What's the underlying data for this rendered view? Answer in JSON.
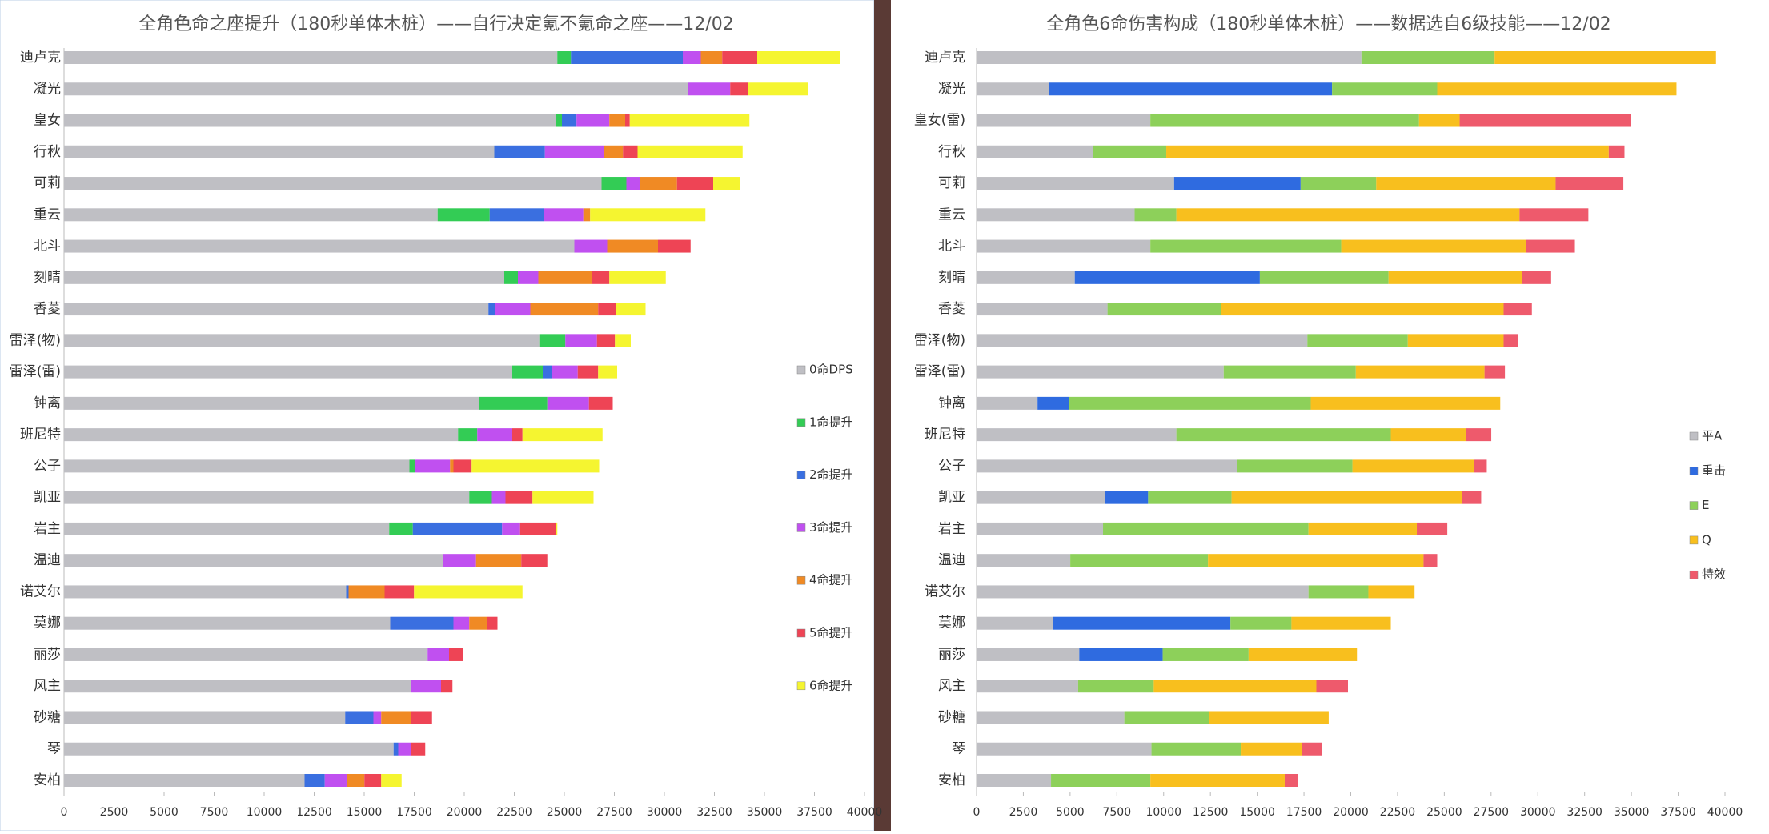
{
  "chart_data": [
    {
      "type": "bar",
      "horizontal": true,
      "legend": "right",
      "title": "全角色命之座提升（180秒单体木桩）——自行决定氪不氪命之座——12/02",
      "categories": [
        "迪卢克",
        "凝光",
        "皇女",
        "行秋",
        "可莉",
        "重云",
        "北斗",
        "刻晴",
        "香菱",
        "雷泽(物)",
        "雷泽(雷)",
        "钟离",
        "班尼特",
        "公子",
        "凯亚",
        "岩主",
        "温迪",
        "诺艾尔",
        "莫娜",
        "丽莎",
        "风主",
        "砂糖",
        "琴",
        "安柏"
      ],
      "series": [
        {
          "name": "0命DPS",
          "color": "#bfbfc4",
          "values": [
            24650,
            31200,
            24600,
            21500,
            26860,
            18670,
            25500,
            22000,
            21210,
            23750,
            22400,
            20760,
            19690,
            17260,
            20250,
            16250,
            18960,
            14100,
            16300,
            18170,
            17320,
            14050,
            16470,
            12020
          ]
        },
        {
          "name": "1命提升",
          "color": "#33cc55",
          "values": [
            680,
            0,
            280,
            0,
            1240,
            2600,
            0,
            680,
            0,
            1300,
            1520,
            3390,
            960,
            290,
            1130,
            1180,
            0,
            0,
            0,
            0,
            0,
            0,
            0,
            0
          ]
        },
        {
          "name": "2命提升",
          "color": "#3a6fe0",
          "values": [
            5590,
            0,
            730,
            2530,
            0,
            2710,
            0,
            0,
            340,
            0,
            450,
            0,
            0,
            0,
            0,
            4460,
            0,
            120,
            3160,
            0,
            0,
            1410,
            230,
            1010
          ]
        },
        {
          "name": "3命提升",
          "color": "#c050f0",
          "values": [
            900,
            2090,
            1640,
            2940,
            670,
            1970,
            1640,
            1020,
            1750,
            1580,
            1300,
            2080,
            1750,
            1740,
            680,
            900,
            1630,
            0,
            790,
            1070,
            1520,
            390,
            620,
            1130
          ]
        },
        {
          "name": "4命提升",
          "color": "#f08a24",
          "values": [
            1070,
            0,
            790,
            960,
            1860,
            340,
            2540,
            2700,
            3390,
            0,
            0,
            0,
            0,
            170,
            0,
            0,
            2260,
            1800,
            910,
            0,
            0,
            1470,
            0,
            850
          ]
        },
        {
          "name": "5命提升",
          "color": "#ee4455",
          "values": [
            1750,
            900,
            230,
            730,
            1810,
            0,
            1630,
            850,
            900,
            900,
            1020,
            1190,
            510,
            910,
            1350,
            1810,
            1300,
            1470,
            500,
            680,
            570,
            1070,
            730,
            840
          ]
        },
        {
          "name": "6命提升",
          "color": "#f5f530",
          "values": [
            4120,
            2990,
            5980,
            5250,
            1350,
            5760,
            0,
            2820,
            1470,
            790,
            950,
            0,
            4000,
            6370,
            3050,
            50,
            0,
            5420,
            0,
            0,
            0,
            0,
            0,
            1020
          ]
        }
      ],
      "xlim": [
        0,
        40000
      ],
      "xticks": [
        0,
        2500,
        5000,
        7500,
        10000,
        12500,
        15000,
        17500,
        20000,
        22500,
        25000,
        27500,
        30000,
        32500,
        35000,
        37500,
        40000
      ]
    },
    {
      "type": "bar",
      "horizontal": true,
      "legend": "right",
      "title": "全角色6命伤害构成（180秒单体木桩）——数据选自6级技能——12/02",
      "categories": [
        "迪卢克",
        "凝光",
        "皇女(雷)",
        "行秋",
        "可莉",
        "重云",
        "北斗",
        "刻晴",
        "香菱",
        "雷泽(物)",
        "雷泽(雷)",
        "钟离",
        "班尼特",
        "公子",
        "凯亚",
        "岩主",
        "温迪",
        "诺艾尔",
        "莫娜",
        "丽莎",
        "风主",
        "砂糖",
        "琴",
        "安柏"
      ],
      "series": [
        {
          "name": "平A",
          "color": "#bfbfc4",
          "values": [
            20570,
            3860,
            9290,
            6210,
            10560,
            8450,
            9290,
            5250,
            7000,
            17680,
            13210,
            3260,
            10680,
            13940,
            6880,
            6760,
            5010,
            17740,
            4100,
            5490,
            5430,
            7900,
            9350,
            3980
          ]
        },
        {
          "name": "重击",
          "color": "#2f6be0",
          "values": [
            0,
            15140,
            0,
            0,
            6760,
            0,
            0,
            9890,
            0,
            0,
            0,
            1690,
            0,
            0,
            2290,
            0,
            0,
            0,
            9470,
            4460,
            0,
            0,
            0,
            0
          ]
        },
        {
          "name": "E",
          "color": "#8dd05a",
          "values": [
            7120,
            5620,
            14360,
            3930,
            4040,
            2230,
            10200,
            6880,
            6090,
            5370,
            7060,
            12910,
            11460,
            6150,
            4460,
            10980,
            7360,
            3200,
            3260,
            4590,
            4040,
            4530,
            4770,
            5310
          ]
        },
        {
          "name": "Q",
          "color": "#f8bf1e",
          "values": [
            11830,
            12790,
            2170,
            23650,
            9590,
            18340,
            9890,
            7120,
            15080,
            5120,
            6880,
            10130,
            4040,
            6520,
            12310,
            5790,
            11520,
            2470,
            5310,
            5790,
            8690,
            6390,
            3260,
            7180
          ]
        },
        {
          "name": "特效",
          "color": "#ee5a6c",
          "values": [
            0,
            0,
            9170,
            840,
            3620,
            3680,
            2600,
            1570,
            1510,
            790,
            1090,
            0,
            1330,
            660,
            1030,
            1630,
            730,
            0,
            0,
            0,
            1690,
            0,
            1080,
            720
          ]
        }
      ],
      "xlim": [
        0,
        40000
      ],
      "xticks": [
        0,
        2500,
        5000,
        7500,
        10000,
        12500,
        15000,
        17500,
        20000,
        22500,
        25000,
        27500,
        30000,
        32500,
        35000,
        37500,
        40000
      ]
    }
  ]
}
